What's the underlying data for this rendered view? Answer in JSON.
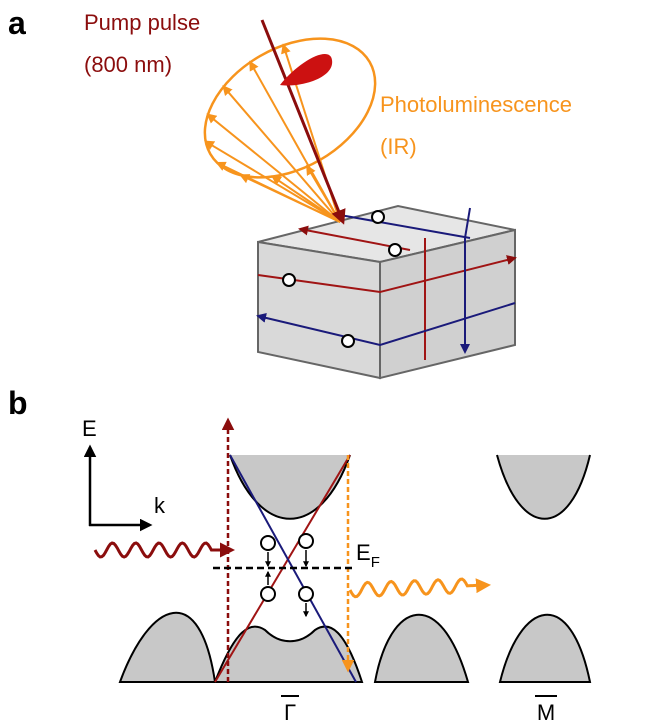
{
  "panel_a": {
    "label": "a",
    "pump_label": [
      "Pump pulse",
      "(800 nm)"
    ],
    "pl_label": [
      "Photoluminescence",
      "(IR)"
    ]
  },
  "panel_b": {
    "label": "b",
    "energy_axis": "E",
    "momentum_axis": "k",
    "fermi_level": {
      "main": "E",
      "sub": "F"
    },
    "points": [
      "Γ",
      "M"
    ]
  }
}
